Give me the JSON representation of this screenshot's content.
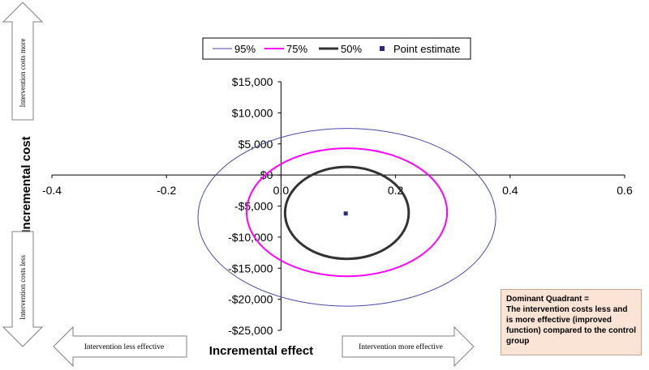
{
  "chart_data": {
    "type": "scatter",
    "xlabel": "Incremental effect",
    "ylabel": "Incremental cost",
    "xlim": [
      -0.4,
      0.6
    ],
    "ylim": [
      -25000,
      15000
    ],
    "x_ticks": [
      -0.4,
      -0.2,
      0,
      0.2,
      0.4,
      0.6
    ],
    "x_tick_labels": [
      "-0.4",
      "-0.2",
      "0.0",
      "0.2",
      "0.4",
      "0.6"
    ],
    "y_ticks": [
      15000,
      10000,
      5000,
      0,
      -5000,
      -10000,
      -15000,
      -20000,
      -25000
    ],
    "y_tick_labels": [
      "$15,000",
      "$10,000",
      "$5,000",
      "$0",
      "-$5,000",
      "-$10,000",
      "-$15,000",
      "-$20,000",
      "-$25,000"
    ],
    "legend_position": "top-center",
    "series": [
      {
        "name": "95%",
        "kind": "ellipse",
        "color": "#4a4aa8",
        "center": [
          0.115,
          -6800
        ],
        "x_radius": 0.26,
        "y_radius": 14300
      },
      {
        "name": "75%",
        "kind": "ellipse",
        "color": "#ff00ff",
        "center": [
          0.115,
          -6000
        ],
        "x_radius": 0.175,
        "y_radius": 10300
      },
      {
        "name": "50%",
        "kind": "ellipse",
        "color": "#333333",
        "center": [
          0.115,
          -6100
        ],
        "x_radius": 0.108,
        "y_radius": 7400
      },
      {
        "name": "Point estimate",
        "kind": "point",
        "color": "#2a2a7a",
        "x": 0.113,
        "y": -6200
      }
    ]
  },
  "annotations": {
    "costs_more": "Intervention costs more",
    "costs_less": "Intervention costs less",
    "less_effective": "Intervention less effective",
    "more_effective": "Intervention more effective",
    "dominant_title": "Dominant Quadrant =",
    "dominant_text": "The intervention costs less and is more effective (improved function) compared to the control group"
  }
}
